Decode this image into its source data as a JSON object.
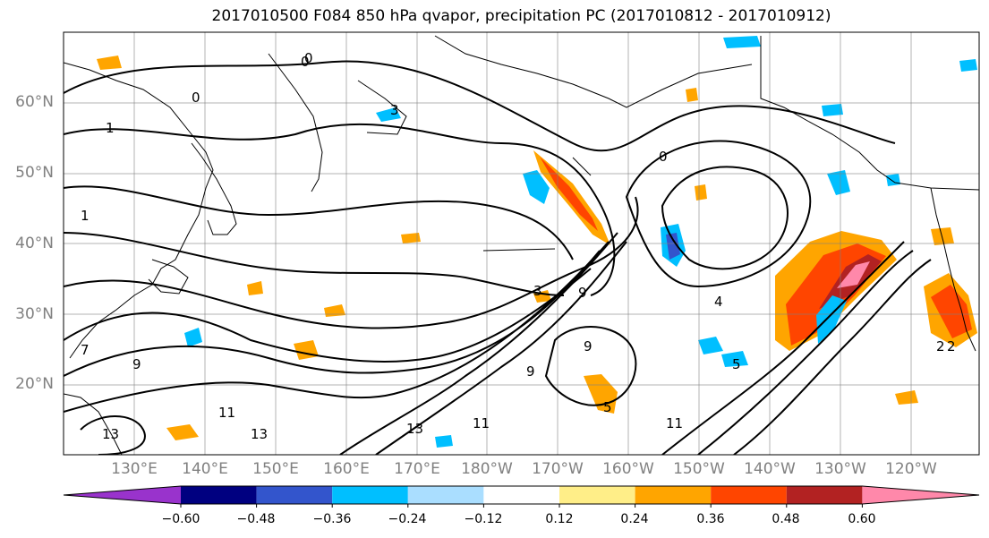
{
  "title": "2017010500 F084 850 hPa qvapor, precipitation PC (2017010812 - 2017010912)",
  "lat_labels": [
    "60°N",
    "50°N",
    "40°N",
    "30°N",
    "20°N"
  ],
  "lon_labels": [
    "130°E",
    "140°E",
    "150°E",
    "160°E",
    "170°E",
    "180°W",
    "170°W",
    "160°W",
    "150°W",
    "140°W",
    "130°W",
    "120°W"
  ],
  "colorbar": {
    "colors": [
      "#9933cc",
      "#000080",
      "#3355cc",
      "#00bfff",
      "#aadeff",
      "#ffffff",
      "#ffee88",
      "#ffa500",
      "#ff4500",
      "#b22222",
      "#ff88aa"
    ],
    "tick_labels": [
      "−0.60",
      "−0.48",
      "−0.36",
      "−0.24",
      "−0.12",
      "0.12",
      "0.24",
      "0.36",
      "0.48",
      "0.60"
    ]
  },
  "contour_labels": [
    "0",
    "0",
    "1",
    "1",
    "3",
    "2",
    "3",
    "4",
    "5",
    "5",
    "9",
    "9",
    "7",
    "9",
    "9",
    "11",
    "13",
    "13",
    "11",
    "13",
    "2",
    "11",
    "0",
    "0"
  ]
}
